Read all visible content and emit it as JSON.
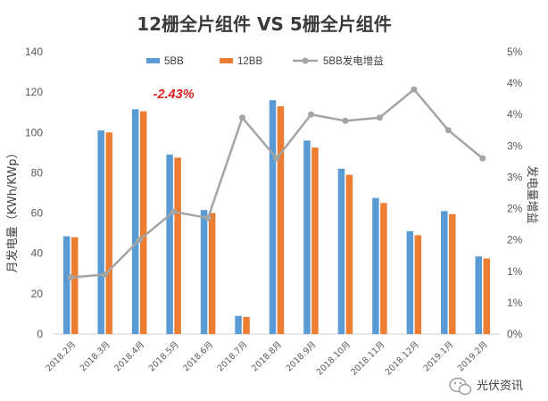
{
  "chart_data": {
    "type": "bar",
    "title": "12栅全片组件 VS 5栅全片组件",
    "categories": [
      "2018.2月",
      "2018.3月",
      "2018.4月",
      "2018.5月",
      "2018.6月",
      "2018.7月",
      "2018.8月",
      "2018.9月",
      "2018.10月",
      "2018.11月",
      "2018.12月",
      "2019.1月",
      "2019.2月"
    ],
    "series": [
      {
        "name": "5BB",
        "type": "bar",
        "axis": "left",
        "color": "#5b9bd5",
        "values": [
          48.5,
          101,
          111.5,
          89,
          61.5,
          9,
          116,
          96,
          82,
          67.5,
          51,
          61,
          38.5
        ]
      },
      {
        "name": "12BB",
        "type": "bar",
        "axis": "left",
        "color": "#ed7d31",
        "values": [
          48,
          100,
          110.5,
          87.5,
          60,
          8.5,
          113,
          92.5,
          79,
          65,
          49,
          59.5,
          37.5
        ]
      },
      {
        "name": "5BB发电增益",
        "type": "line",
        "axis": "right",
        "color": "#a5a5a5",
        "values": [
          0.9,
          0.95,
          1.5,
          1.95,
          1.85,
          3.45,
          2.8,
          3.5,
          3.4,
          3.45,
          3.9,
          3.25,
          2.8
        ]
      }
    ],
    "ylabel": "月发电量（KWh/KWp）",
    "ylim": [
      0,
      140
    ],
    "yticks": [
      "0",
      "20",
      "40",
      "60",
      "80",
      "100",
      "120",
      "140"
    ],
    "y2label": "发电量增益",
    "y2lim": [
      0,
      4.5
    ],
    "y2ticks": [
      "0%",
      "1%",
      "1%",
      "2%",
      "2%",
      "3%",
      "3%",
      "4%",
      "4%",
      "5%"
    ],
    "legend": {
      "position": "top",
      "entries": [
        "5BB",
        "12BB",
        "5BB发电增益"
      ]
    },
    "grid": false,
    "annotation": {
      "text": "-2.43%",
      "color": "#e02020",
      "category": "2018.5月"
    }
  },
  "watermark": {
    "icon": "wechat-icon",
    "text": "光伏资讯"
  }
}
